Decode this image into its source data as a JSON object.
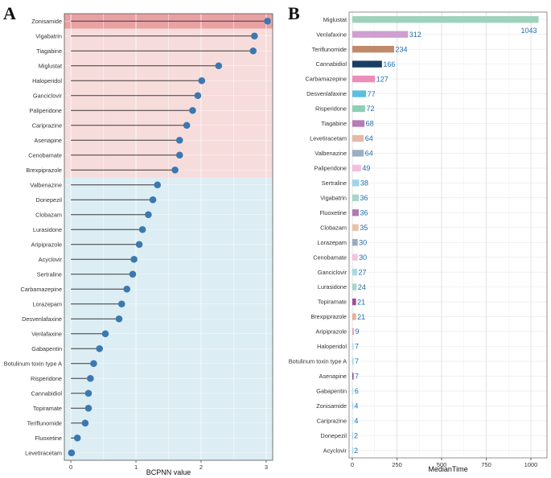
{
  "chart_data": [
    {
      "panel_label": "A",
      "type": "lollipop",
      "title": "",
      "xlabel": "BCPNN value",
      "ylabel": "",
      "xlim": [
        -0.1,
        3.1
      ],
      "xticks": [
        0,
        1,
        2,
        3
      ],
      "grid": true,
      "categories": [
        "Zonisamide",
        "Vigabatrin",
        "Tiagabine",
        "Miglustat",
        "Haloperidol",
        "Ganciclovir",
        "Paliperidone",
        "Cariprazine",
        "Asenapine",
        "Cenobamate",
        "Brexpiprazole",
        "Valbenazine",
        "Donepezil",
        "Clobazam",
        "Lurasidone",
        "Aripiprazole",
        "Acyclovir",
        "Sertraline",
        "Carbamazepine",
        "Lorazepam",
        "Desvenlafaxine",
        "Venlafaxine",
        "Gabapentin",
        "Botulinum toxin type A",
        "Risperidone",
        "Cannabidiol",
        "Topiramate",
        "Teriflunomide",
        "Fluoxetine",
        "Levetiracetam"
      ],
      "values": [
        3.02,
        2.82,
        2.8,
        2.27,
        2.01,
        1.95,
        1.87,
        1.78,
        1.67,
        1.67,
        1.6,
        1.33,
        1.26,
        1.19,
        1.1,
        1.05,
        0.97,
        0.95,
        0.86,
        0.78,
        0.74,
        0.53,
        0.44,
        0.35,
        0.3,
        0.27,
        0.27,
        0.22,
        0.1,
        0.01
      ],
      "bands": [
        {
          "from_index": 0,
          "to_index": 0,
          "color": "#eaa1a4"
        },
        {
          "from_index": 1,
          "to_index": 10,
          "color": "#f7dcdc"
        },
        {
          "from_index": 11,
          "to_index": 29,
          "color": "#dcedf3"
        }
      ],
      "point_color": "#3b78b0",
      "stem_color": "#3a3a3a"
    },
    {
      "panel_label": "B",
      "type": "bar",
      "orientation": "horizontal",
      "title": "",
      "xlabel": "MedianTime",
      "ylabel": "",
      "xlim": [
        -18,
        1090
      ],
      "xticks": [
        0,
        250,
        500,
        750,
        1000
      ],
      "grid": true,
      "categories": [
        "Miglustat",
        "Venlafaxine",
        "Teriflunomide",
        "Cannabidiol",
        "Carbamazepine",
        "Desvenlafaxine",
        "Risperidone",
        "Tiagabine",
        "Levetiracetam",
        "Valbenazine",
        "Paliperidone",
        "Sertraline",
        "Vigabatrin",
        "Fluoxetine",
        "Clobazam",
        "Lorazepam",
        "Cenobamate",
        "Ganciclovir",
        "Lurasidone",
        "Topiramate",
        "Brexpiprazole",
        "Aripiprazole",
        "Haloperidol",
        "Botulinum toxin type A",
        "Asenapine",
        "Gabapentin",
        "Zonisamide",
        "Cariprazine",
        "Donepezil",
        "Acyclovir"
      ],
      "values": [
        1043,
        312,
        234,
        166,
        127,
        77,
        72,
        68,
        64,
        64,
        49,
        38,
        36,
        36,
        35,
        30,
        30,
        27,
        24,
        21,
        21,
        9,
        7,
        7,
        7,
        6,
        4,
        4,
        2,
        2
      ],
      "value_labels": [
        "1043",
        "312",
        "234",
        "166",
        "127",
        "77",
        "72",
        "68",
        "64",
        "64",
        "49",
        "38",
        "36",
        "36",
        "35",
        "30",
        "30",
        "27",
        "24",
        "21",
        "21",
        "9",
        "7",
        "7",
        "7",
        "6",
        "4",
        "4",
        "2",
        "2"
      ],
      "colors": [
        "#9fd2bd",
        "#cf9fcf",
        "#c08a6a",
        "#1a3d63",
        "#eb8fb9",
        "#5bbfe3",
        "#8ecfb5",
        "#b67cb5",
        "#e5b8a8",
        "#9aaec6",
        "#f2bfdc",
        "#9fd4ea",
        "#a8d6c6",
        "#b07ab5",
        "#e8c2a8",
        "#9aaac0",
        "#f2c4dd",
        "#a8d8ea",
        "#a6d7c6",
        "#a24b93",
        "#e8b09a",
        "#e8a0c8",
        "#b8e0f0",
        "#a8d8ea",
        "#8a4fa0",
        "#b8e0f0",
        "#a8d8ea",
        "#cce8f4",
        "#a8d8ea",
        "#a8d8ea"
      ]
    }
  ]
}
